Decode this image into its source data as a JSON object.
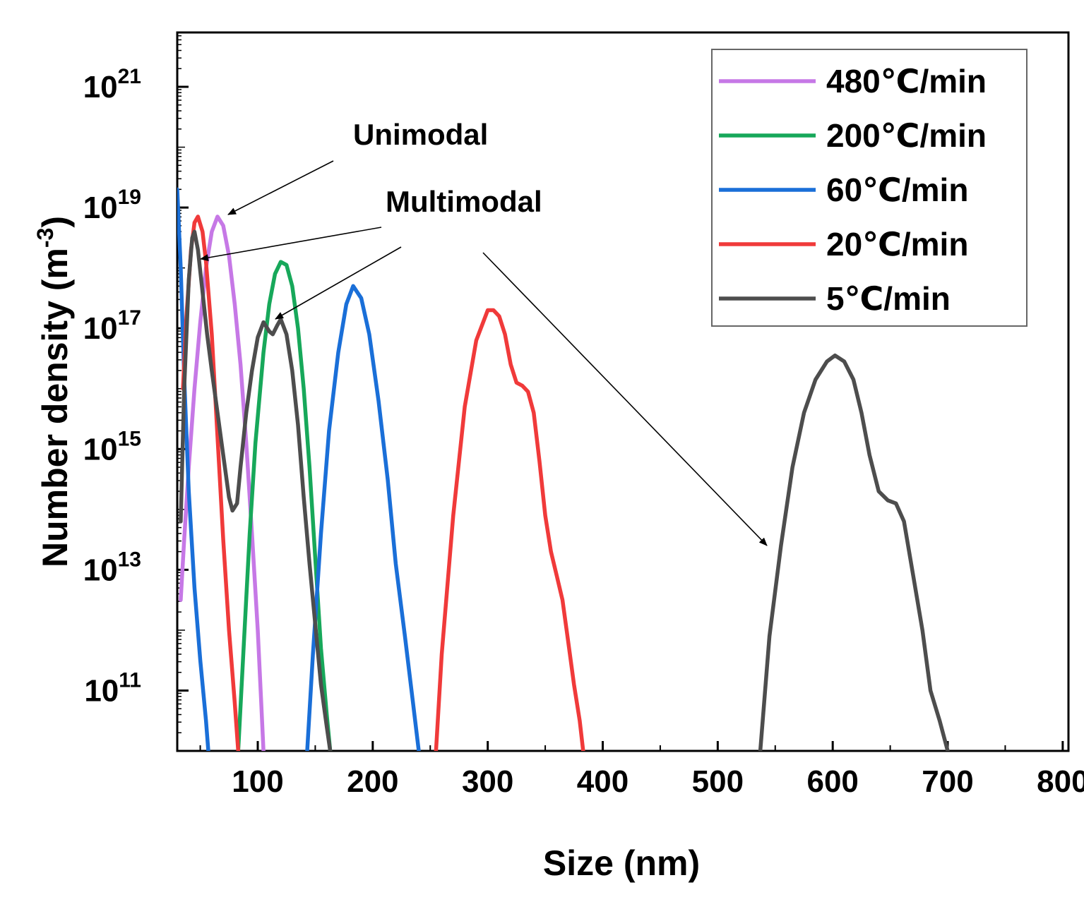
{
  "chart_data": {
    "type": "line",
    "title": "",
    "xlabel": "Size (nm)",
    "ylabel_prefix": "Number density (m",
    "ylabel_exp": "-3",
    "ylabel_suffix": ")",
    "yscale": "log",
    "xlim": [
      30,
      805
    ],
    "ylim_log10": [
      10.0,
      21.9
    ],
    "x_ticks": [
      100,
      200,
      300,
      400,
      500,
      600,
      700,
      800
    ],
    "x_tick_labels": [
      "100",
      "200",
      "300",
      "400",
      "500",
      "600",
      "700",
      "800"
    ],
    "y_ticks": [
      {
        "exp": 11,
        "base": "10",
        "sup": "11"
      },
      {
        "exp": 13,
        "base": "10",
        "sup": "13"
      },
      {
        "exp": 15,
        "base": "10",
        "sup": "15"
      },
      {
        "exp": 17,
        "base": "10",
        "sup": "17"
      },
      {
        "exp": 19,
        "base": "10",
        "sup": "19"
      },
      {
        "exp": 21,
        "base": "10",
        "sup": "21"
      }
    ],
    "legend_position": "top-right",
    "series": [
      {
        "name": "480℃/min",
        "color": "#c678e6",
        "points": [
          [
            33,
            12.5
          ],
          [
            36,
            13.5
          ],
          [
            40,
            14.7
          ],
          [
            45,
            16.0
          ],
          [
            50,
            17.1
          ],
          [
            55,
            18.0
          ],
          [
            60,
            18.6
          ],
          [
            65,
            18.85
          ],
          [
            70,
            18.7
          ],
          [
            75,
            18.2
          ],
          [
            80,
            17.4
          ],
          [
            85,
            16.4
          ],
          [
            90,
            15.1
          ],
          [
            95,
            13.6
          ],
          [
            100,
            12.0
          ],
          [
            103,
            10.8
          ],
          [
            105,
            10.0
          ]
        ]
      },
      {
        "name": "200℃/min",
        "color": "#17a85a",
        "points": [
          [
            83,
            10.0
          ],
          [
            88,
            11.8
          ],
          [
            93,
            13.6
          ],
          [
            98,
            15.1
          ],
          [
            105,
            16.6
          ],
          [
            110,
            17.4
          ],
          [
            115,
            17.9
          ],
          [
            120,
            18.1
          ],
          [
            125,
            18.05
          ],
          [
            130,
            17.7
          ],
          [
            135,
            17.0
          ],
          [
            140,
            16.0
          ],
          [
            145,
            14.7
          ],
          [
            150,
            13.2
          ],
          [
            155,
            11.7
          ],
          [
            160,
            10.6
          ],
          [
            163,
            10.0
          ]
        ]
      },
      {
        "name": "60℃/min",
        "color": "#1a6fd8",
        "points": [
          [
            30,
            19.3
          ],
          [
            33,
            18.0
          ],
          [
            36,
            16.2
          ],
          [
            40,
            14.3
          ],
          [
            45,
            12.7
          ],
          [
            50,
            11.5
          ],
          [
            55,
            10.5
          ],
          [
            57,
            10.0
          ],
          [
            143,
            10.0
          ],
          [
            148,
            11.6
          ],
          [
            155,
            13.6
          ],
          [
            162,
            15.3
          ],
          [
            170,
            16.6
          ],
          [
            177,
            17.4
          ],
          [
            183,
            17.7
          ],
          [
            190,
            17.5
          ],
          [
            197,
            16.9
          ],
          [
            205,
            15.8
          ],
          [
            213,
            14.5
          ],
          [
            220,
            13.1
          ],
          [
            228,
            11.9
          ],
          [
            235,
            10.8
          ],
          [
            240,
            10.0
          ]
        ]
      },
      {
        "name": "20℃/min",
        "color": "#f03a3a",
        "points": [
          [
            35,
            16.0
          ],
          [
            38,
            17.2
          ],
          [
            42,
            18.3
          ],
          [
            45,
            18.75
          ],
          [
            48,
            18.85
          ],
          [
            52,
            18.6
          ],
          [
            55,
            18.1
          ],
          [
            60,
            16.9
          ],
          [
            65,
            15.2
          ],
          [
            70,
            13.5
          ],
          [
            75,
            12.0
          ],
          [
            80,
            10.8
          ],
          [
            83,
            10.0
          ],
          [
            255,
            10.0
          ],
          [
            260,
            11.6
          ],
          [
            270,
            13.9
          ],
          [
            280,
            15.7
          ],
          [
            290,
            16.8
          ],
          [
            300,
            17.3
          ],
          [
            305,
            17.3
          ],
          [
            310,
            17.2
          ],
          [
            315,
            16.9
          ],
          [
            320,
            16.4
          ],
          [
            325,
            16.1
          ],
          [
            330,
            16.05
          ],
          [
            335,
            15.95
          ],
          [
            340,
            15.6
          ],
          [
            345,
            14.8
          ],
          [
            350,
            13.9
          ],
          [
            355,
            13.3
          ],
          [
            360,
            12.9
          ],
          [
            365,
            12.5
          ],
          [
            370,
            11.8
          ],
          [
            375,
            11.1
          ],
          [
            380,
            10.5
          ],
          [
            383,
            10.0
          ]
        ]
      },
      {
        "name": "5℃/min",
        "color": "#4d4d4d",
        "points": [
          [
            33,
            13.8
          ],
          [
            36,
            16.0
          ],
          [
            40,
            17.8
          ],
          [
            43,
            18.5
          ],
          [
            45,
            18.6
          ],
          [
            48,
            18.3
          ],
          [
            52,
            17.6
          ],
          [
            56,
            16.9
          ],
          [
            60,
            16.3
          ],
          [
            65,
            15.6
          ],
          [
            70,
            14.9
          ],
          [
            75,
            14.2
          ],
          [
            78,
            13.98
          ],
          [
            82,
            14.1
          ],
          [
            85,
            14.7
          ],
          [
            90,
            15.6
          ],
          [
            95,
            16.3
          ],
          [
            100,
            16.85
          ],
          [
            105,
            17.1
          ],
          [
            110,
            16.95
          ],
          [
            113,
            16.9
          ],
          [
            117,
            17.05
          ],
          [
            120,
            17.15
          ],
          [
            125,
            16.9
          ],
          [
            130,
            16.3
          ],
          [
            135,
            15.4
          ],
          [
            140,
            14.2
          ],
          [
            145,
            13.1
          ],
          [
            150,
            12.1
          ],
          [
            155,
            11.1
          ],
          [
            160,
            10.4
          ],
          [
            163,
            10.0
          ],
          [
            537,
            10.0
          ],
          [
            545,
            11.9
          ],
          [
            555,
            13.4
          ],
          [
            565,
            14.7
          ],
          [
            575,
            15.6
          ],
          [
            585,
            16.15
          ],
          [
            595,
            16.45
          ],
          [
            602,
            16.55
          ],
          [
            610,
            16.45
          ],
          [
            618,
            16.15
          ],
          [
            625,
            15.6
          ],
          [
            632,
            14.9
          ],
          [
            640,
            14.3
          ],
          [
            648,
            14.15
          ],
          [
            655,
            14.1
          ],
          [
            662,
            13.8
          ],
          [
            670,
            12.9
          ],
          [
            678,
            12.0
          ],
          [
            685,
            11.0
          ],
          [
            693,
            10.5
          ],
          [
            700,
            10.0
          ]
        ]
      }
    ],
    "annotations": [
      {
        "text": "Unimodal"
      },
      {
        "text": "Multimodal"
      }
    ]
  }
}
